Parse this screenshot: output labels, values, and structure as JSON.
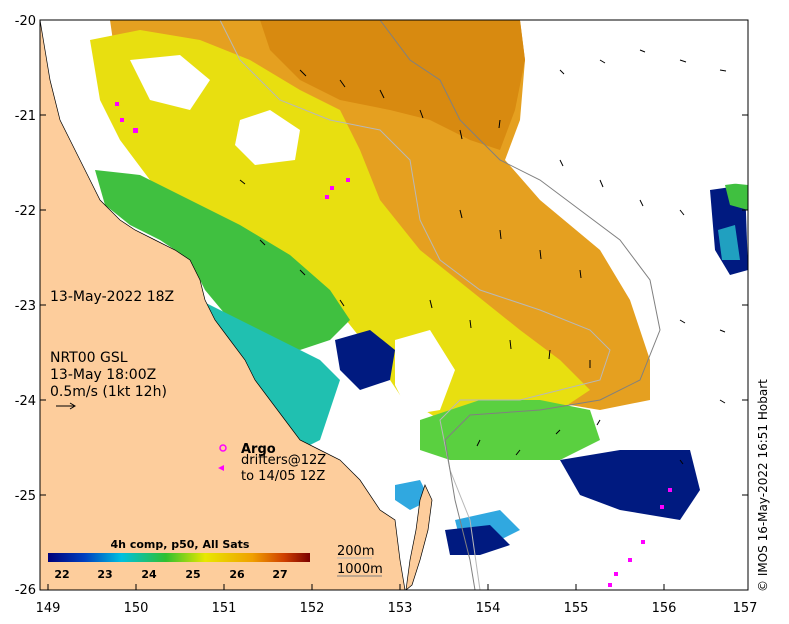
{
  "map": {
    "x_ticks": [
      "149",
      "150",
      "151",
      "152",
      "153",
      "154",
      "155",
      "156",
      "157"
    ],
    "y_ticks": [
      "-20",
      "-21",
      "-22",
      "-23",
      "-24",
      "-25",
      "-26"
    ],
    "date_label": "13-May-2022 18Z",
    "current_info": {
      "line1": "NRT00 GSL",
      "line2": "13-May 18:00Z",
      "line3": "0.5m/s (1kt 12h)"
    },
    "legend": {
      "argo": "Argo",
      "drifters": "drifters@12Z",
      "drifters_period": "to 14/05 12Z"
    },
    "colorbar": {
      "title": "4h comp, p50, All Sats",
      "ticks": [
        "22",
        "23",
        "24",
        "25",
        "26",
        "27"
      ]
    },
    "depth_legend": {
      "contour1": "200m",
      "contour2": "1000m"
    },
    "credit": "© IMOS 16-May-2022 16:51 Hobart",
    "colors": {
      "land": "#fdcd9c",
      "sst_warm": "#e4940f",
      "sst_yellow": "#e6e000",
      "sst_green": "#40c040",
      "sst_cyan": "#00b8d8",
      "sst_blue": "#001a80",
      "drifter": "#ff00ff"
    }
  }
}
